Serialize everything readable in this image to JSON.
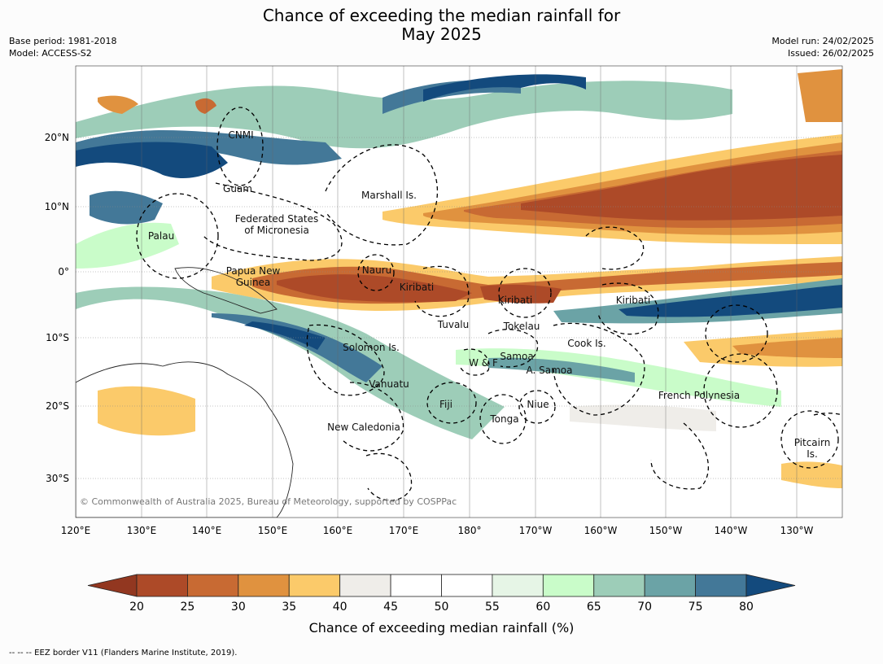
{
  "title_line1": "Chance of exceeding the median rainfall for",
  "title_line2": "May 2025",
  "meta": {
    "base_period": "Base period: 1981-2018",
    "model": "Model: ACCESS-S2",
    "model_run": "Model run: 24/02/2025",
    "issued": "Issued: 26/02/2025"
  },
  "axes": {
    "lon_ticks": [
      "120°E",
      "130°E",
      "140°E",
      "150°E",
      "160°E",
      "170°E",
      "180°",
      "170°W",
      "160°W",
      "150°W",
      "140°W",
      "130°W"
    ],
    "lat_ticks": [
      "20°N",
      "10°N",
      "0°",
      "10°S",
      "20°S",
      "30°S"
    ]
  },
  "regions": [
    {
      "name": "CNMI"
    },
    {
      "name": "Guam"
    },
    {
      "name": "Marshall Is."
    },
    {
      "name": "Federated States",
      "name2": "of Micronesia"
    },
    {
      "name": "Palau"
    },
    {
      "name": "Papua New",
      "name2": "Guinea"
    },
    {
      "name": "Nauru"
    },
    {
      "name": "Kiribati"
    },
    {
      "name": "Kiribati"
    },
    {
      "name": "Kiribati"
    },
    {
      "name": "Tuvalu"
    },
    {
      "name": "Tokelau"
    },
    {
      "name": "Solomon Is."
    },
    {
      "name": "Cook Is."
    },
    {
      "name": "Samoa"
    },
    {
      "name": "W & F"
    },
    {
      "name": "A. Samoa"
    },
    {
      "name": "Vanuatu"
    },
    {
      "name": "Fiji"
    },
    {
      "name": "Niue"
    },
    {
      "name": "French Polynesia"
    },
    {
      "name": "Tonga"
    },
    {
      "name": "New Caledonia"
    },
    {
      "name": "Pitcairn",
      "name2": "Is."
    }
  ],
  "copyright": "© Commonwealth of Australia 2025, Bureau of Meteorology, supported by COSPPac",
  "colorbar": {
    "ticks": [
      "20",
      "25",
      "30",
      "35",
      "40",
      "45",
      "50",
      "55",
      "60",
      "65",
      "70",
      "75",
      "80"
    ],
    "colors": [
      "#ad4a28",
      "#c86a33",
      "#e0923f",
      "#fbca6a",
      "#efede9",
      "#ffffff",
      "#ffffff",
      "#e6f5e6",
      "#c9fcc9",
      "#9dcdb8",
      "#6ba3a6",
      "#437898"
    ],
    "extend_low_color": "#923720",
    "extend_high_color": "#134a7d",
    "label": "Chance of exceeding median rainfall (%)"
  },
  "footer": "--  --  -- EEZ border V11 (Flanders Marine Institute, 2019)."
}
